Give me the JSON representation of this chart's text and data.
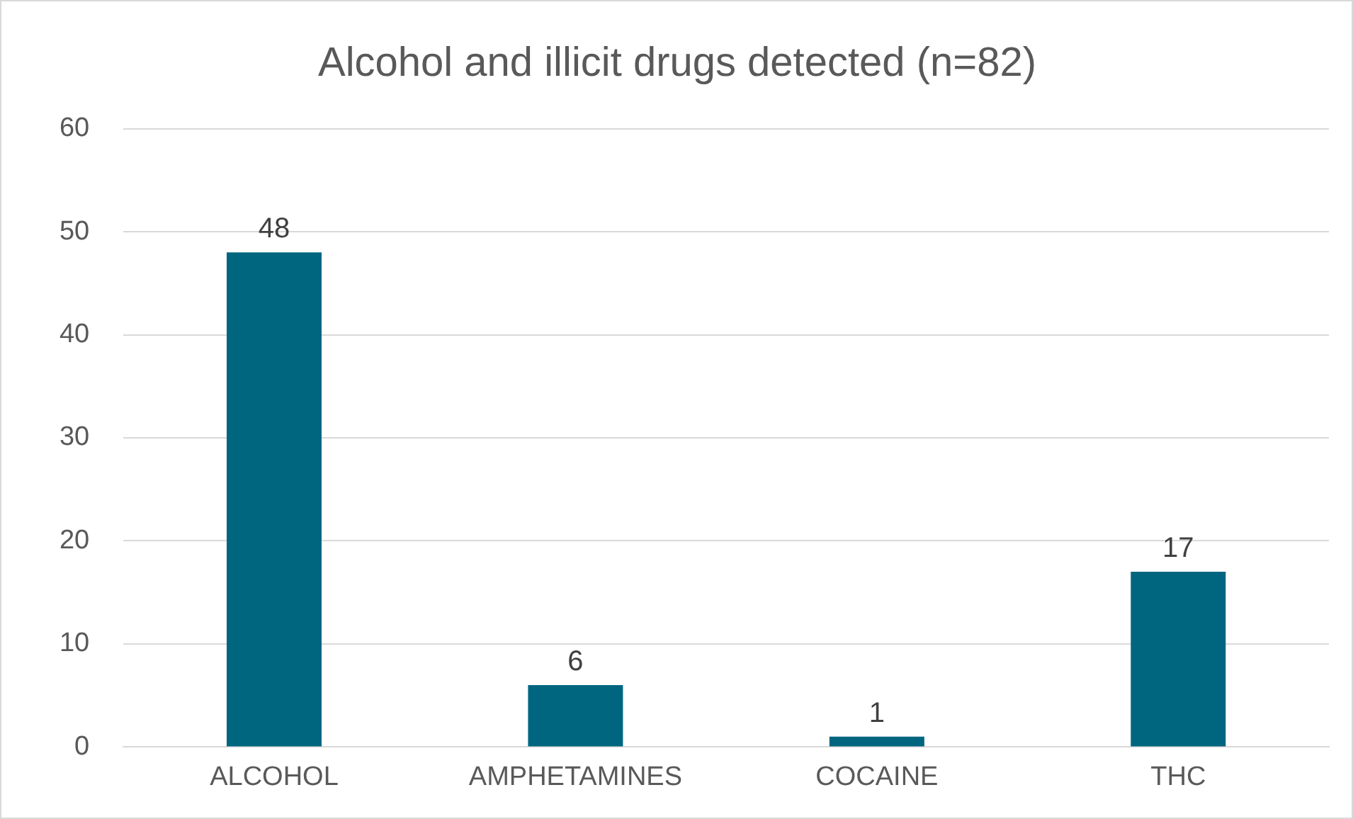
{
  "chart_data": {
    "type": "bar",
    "title": "Alcohol and illicit drugs detected (n=82)",
    "categories": [
      "ALCOHOL",
      "AMPHETAMINES",
      "COCAINE",
      "THC"
    ],
    "values": [
      48,
      6,
      1,
      17
    ],
    "color": "#006680",
    "ylim": [
      0,
      60
    ],
    "yticks": [
      0,
      10,
      20,
      30,
      40,
      50,
      60
    ],
    "grid": "y",
    "data_labels": true,
    "legend": false
  }
}
